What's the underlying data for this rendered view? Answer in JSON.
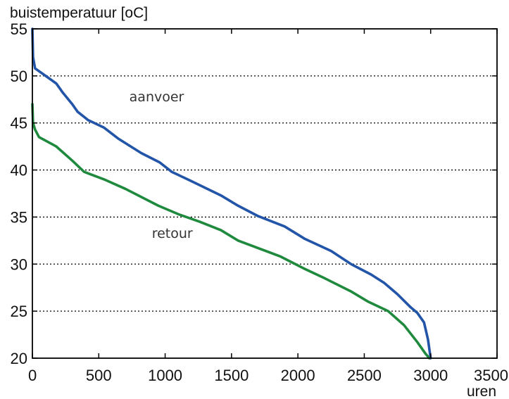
{
  "chart_data": {
    "type": "line",
    "ylabel": "buistemperatuur [oC]",
    "xlabel": "uren",
    "xlim": [
      0,
      3500
    ],
    "ylim": [
      20,
      55
    ],
    "x_ticks": [
      0,
      500,
      1000,
      1500,
      2000,
      2500,
      3000,
      3500
    ],
    "y_ticks": [
      20,
      25,
      30,
      35,
      40,
      45,
      50,
      55
    ],
    "grid": "horizontal-dotted",
    "annotations": [
      {
        "text": "aanvoer",
        "x": 730,
        "y": 47.3
      },
      {
        "text": "retour",
        "x": 900,
        "y": 32.8
      }
    ],
    "series": [
      {
        "name": "aanvoer",
        "color": "#2255a8",
        "points": [
          [
            0,
            55
          ],
          [
            5,
            52
          ],
          [
            20,
            50.8
          ],
          [
            100,
            50
          ],
          [
            180,
            49.2
          ],
          [
            230,
            48.2
          ],
          [
            300,
            47
          ],
          [
            340,
            46.2
          ],
          [
            420,
            45.3
          ],
          [
            540,
            44.5
          ],
          [
            650,
            43.3
          ],
          [
            820,
            41.8
          ],
          [
            960,
            40.8
          ],
          [
            1050,
            39.8
          ],
          [
            1200,
            38.8
          ],
          [
            1420,
            37.3
          ],
          [
            1550,
            36.2
          ],
          [
            1700,
            35.1
          ],
          [
            1900,
            34
          ],
          [
            2050,
            32.7
          ],
          [
            2250,
            31.4
          ],
          [
            2400,
            30
          ],
          [
            2550,
            28.9
          ],
          [
            2650,
            28
          ],
          [
            2750,
            26.8
          ],
          [
            2850,
            25.4
          ],
          [
            2900,
            24.8
          ],
          [
            2950,
            23.8
          ],
          [
            2980,
            22
          ],
          [
            3000,
            20
          ]
        ]
      },
      {
        "name": "retour",
        "color": "#1f8a3e",
        "points": [
          [
            0,
            47
          ],
          [
            5,
            45
          ],
          [
            20,
            44.3
          ],
          [
            50,
            43.5
          ],
          [
            180,
            42.5
          ],
          [
            300,
            41
          ],
          [
            390,
            39.8
          ],
          [
            540,
            39
          ],
          [
            700,
            38
          ],
          [
            950,
            36.2
          ],
          [
            1100,
            35.3
          ],
          [
            1260,
            34.5
          ],
          [
            1420,
            33.6
          ],
          [
            1550,
            32.5
          ],
          [
            1870,
            30.8
          ],
          [
            2050,
            29.5
          ],
          [
            2200,
            28.5
          ],
          [
            2400,
            27.1
          ],
          [
            2530,
            26
          ],
          [
            2680,
            25
          ],
          [
            2800,
            23.5
          ],
          [
            2900,
            21.7
          ],
          [
            2960,
            20.5
          ],
          [
            2990,
            20
          ]
        ]
      }
    ]
  }
}
